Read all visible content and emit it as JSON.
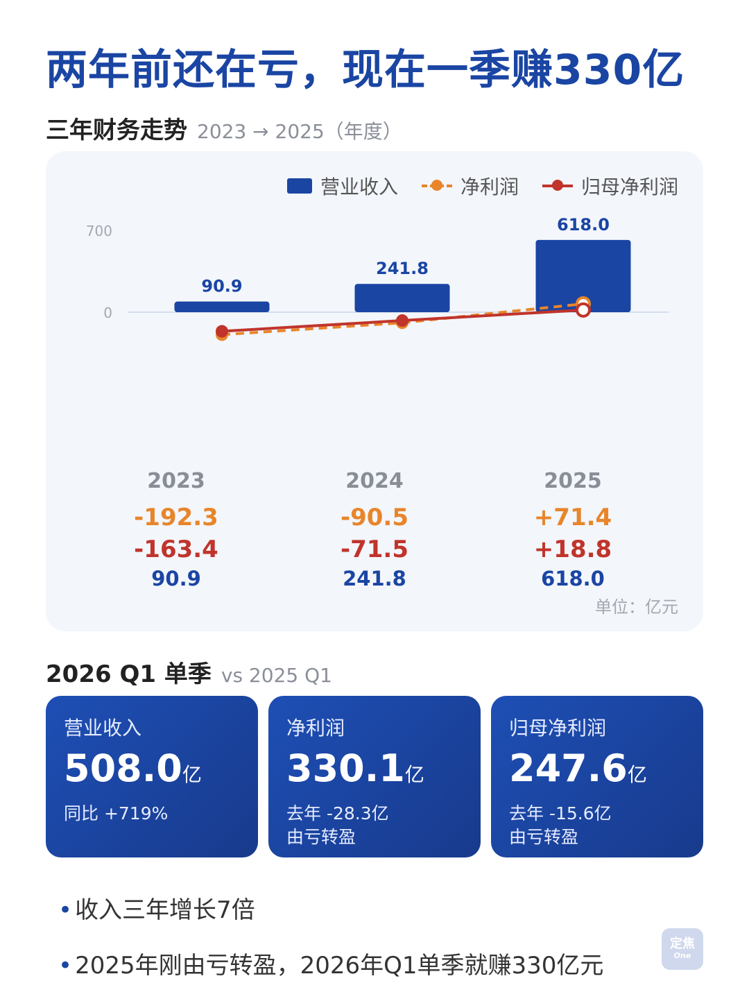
{
  "headline": "两年前还在亏，现在一季赚330亿",
  "annual": {
    "title": "三年财务走势",
    "subtitle": "2023 → 2025（年度）",
    "unit": "单位：亿元",
    "legend": {
      "revenue": "营业收入",
      "net_profit": "净利润",
      "parent_net_profit": "归母净利润"
    },
    "columns": [
      {
        "year": "2023",
        "net_profit": "-192.3",
        "parent_net_profit": "-163.4",
        "revenue": "90.9"
      },
      {
        "year": "2024",
        "net_profit": "-90.5",
        "parent_net_profit": "-71.5",
        "revenue": "241.8"
      },
      {
        "year": "2025",
        "net_profit": "+71.4",
        "parent_net_profit": "+18.8",
        "revenue": "618.0"
      }
    ]
  },
  "chart_data": {
    "type": "bar",
    "categories": [
      "2023",
      "2024",
      "2025"
    ],
    "series": [
      {
        "name": "营业收入",
        "type": "bar",
        "values": [
          90.9,
          241.8,
          618.0
        ],
        "color": "#1a45a3",
        "labels": [
          "90.9",
          "241.8",
          "618.0"
        ]
      },
      {
        "name": "净利润",
        "type": "line",
        "style": "dashed",
        "values": [
          -192.3,
          -90.5,
          71.4
        ],
        "color": "#e8852a"
      },
      {
        "name": "归母净利润",
        "type": "line",
        "style": "solid",
        "values": [
          -163.4,
          -71.5,
          18.8
        ],
        "color": "#c0342b"
      }
    ],
    "yticks": [
      "700",
      "0"
    ],
    "ylim": [
      -700,
      700
    ],
    "legend_position": "top-right",
    "grid": false
  },
  "quarter": {
    "title": "2026 Q1 单季",
    "subtitle": "vs 2025 Q1",
    "cards": [
      {
        "label": "营业收入",
        "value": "508.0",
        "unit": "亿",
        "note1": "同比 +719%",
        "note2": ""
      },
      {
        "label": "净利润",
        "value": "330.1",
        "unit": "亿",
        "note1": "去年 -28.3亿",
        "note2": "由亏转盈"
      },
      {
        "label": "归母净利润",
        "value": "247.6",
        "unit": "亿",
        "note1": "去年 -15.6亿",
        "note2": "由亏转盈"
      }
    ]
  },
  "bullets": [
    "收入三年增长7倍",
    "2025年刚由亏转盈，2026年Q1单季就赚330亿元"
  ],
  "logo": {
    "line1": "定焦",
    "line2": "One"
  },
  "colors": {
    "primary": "#1a45a3",
    "net_profit": "#e8852a",
    "parent_net_profit": "#c0342b"
  }
}
